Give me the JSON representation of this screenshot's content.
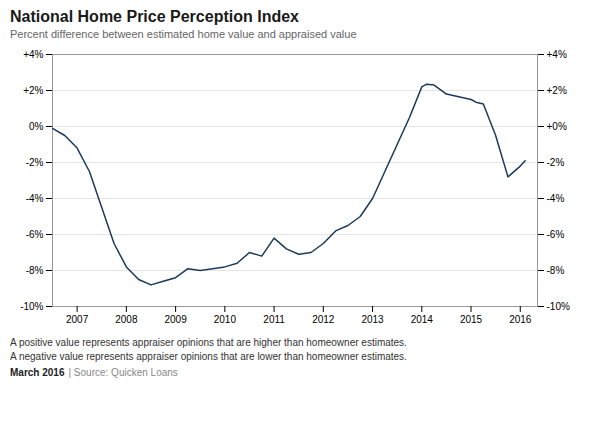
{
  "chart_data": {
    "type": "line",
    "title": "National Home Price Perception Index",
    "subtitle": "Percent difference between estimated home value and appraised value",
    "annotations": [
      "A positive value represents appraiser opinions that are higher than homeowner estimates.",
      "A negative value represents appraiser opinions that are lower than homeowner estimates.",
      "March 2016",
      "| Source: Quicken Loans"
    ],
    "color": "#1b3a5c",
    "grid": true,
    "x": [
      2006.5,
      2006.75,
      2007.0,
      2007.25,
      2007.5,
      2007.75,
      2008.0,
      2008.25,
      2008.5,
      2008.75,
      2009.0,
      2009.25,
      2009.5,
      2009.75,
      2010.0,
      2010.25,
      2010.5,
      2010.75,
      2011.0,
      2011.25,
      2011.5,
      2011.75,
      2012.0,
      2012.25,
      2012.5,
      2012.75,
      2013.0,
      2013.25,
      2013.5,
      2013.75,
      2014.0,
      2014.1,
      2014.25,
      2014.5,
      2014.75,
      2015.0,
      2015.1,
      2015.25,
      2015.5,
      2015.75,
      2016.0,
      2016.1
    ],
    "values": [
      -0.1,
      -0.5,
      -1.2,
      -2.5,
      -4.5,
      -6.5,
      -7.8,
      -8.5,
      -8.8,
      -8.6,
      -8.4,
      -7.9,
      -8.0,
      -7.9,
      -7.8,
      -7.6,
      -7.0,
      -7.2,
      -6.2,
      -6.8,
      -7.1,
      -7.0,
      -6.5,
      -5.8,
      -5.5,
      -5.0,
      -4.0,
      -2.5,
      -1.0,
      0.5,
      2.2,
      2.35,
      2.3,
      1.8,
      1.65,
      1.5,
      1.35,
      1.25,
      -0.5,
      -2.8,
      -2.2,
      -1.9
    ],
    "xlim": [
      2006.5,
      2016.35
    ],
    "xticks": [
      2007,
      2008,
      2009,
      2010,
      2011,
      2012,
      2013,
      2014,
      2015,
      2016
    ],
    "ylim": [
      -10,
      4
    ],
    "yticks": [
      {
        "value": -10,
        "label": "-10%"
      },
      {
        "value": -8,
        "label": "-8%"
      },
      {
        "value": -6,
        "label": "-6%"
      },
      {
        "value": -4,
        "label": "-4%"
      },
      {
        "value": -2,
        "label": "-2%"
      },
      {
        "value": 0,
        "label": "0%"
      },
      {
        "value": 2,
        "label": "+2%"
      },
      {
        "value": 4,
        "label": "+4%"
      }
    ],
    "y2lim": [
      -10,
      4
    ],
    "y2ticks": [
      {
        "value": -10,
        "label": "-10%"
      },
      {
        "value": -8,
        "label": "-8%"
      },
      {
        "value": -6,
        "label": "-6%"
      },
      {
        "value": -4,
        "label": "-4%"
      },
      {
        "value": -2,
        "label": "-2%"
      },
      {
        "value": 0,
        "label": "+0%"
      },
      {
        "value": 2,
        "label": "+2%"
      },
      {
        "value": 4,
        "label": "+4%"
      }
    ]
  }
}
